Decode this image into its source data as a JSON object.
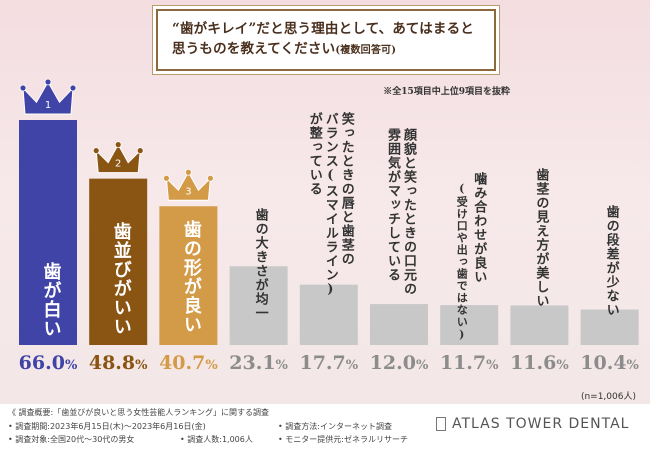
{
  "title": {
    "line1": "“歯がキレイ”だと思う理由として、あてはまると",
    "line2": "思うものを教えてください",
    "line2_sub": "(複数回答可)"
  },
  "note": "※全15項目中上位9項目を抜粋",
  "sample": "(n=1,006人)",
  "chart_data": {
    "type": "bar",
    "ylim": [
      0,
      70
    ],
    "unit": "%",
    "categories": [
      [
        "歯が白い"
      ],
      [
        "歯並びがいい"
      ],
      [
        "歯の形が良い"
      ],
      [
        "歯の大きさが均一"
      ],
      [
        "笑ったときの唇と歯茎の",
        "バランス(スマイルライン)",
        "が整っている"
      ],
      [
        "顔貌と笑ったときの口元の",
        "雰囲気がマッチしている"
      ],
      [
        "噛み合わせが良い",
        "(受け口や出っ歯ではない)"
      ],
      [
        "歯茎の見え方が美しい"
      ],
      [
        "歯の段差が少ない"
      ]
    ],
    "values": [
      66.0,
      48.8,
      40.7,
      23.1,
      17.7,
      12.0,
      11.7,
      11.6,
      10.4
    ],
    "value_labels": [
      "66.0",
      "48.8",
      "40.7",
      "23.1",
      "17.7",
      "12.0",
      "11.7",
      "11.6",
      "10.4"
    ],
    "ranks": [
      "1",
      "2",
      "3"
    ],
    "colors": [
      "#3f44a6",
      "#8a5412",
      "#d39a47",
      "#c8c8c8",
      "#c8c8c8",
      "#c8c8c8",
      "#c8c8c8",
      "#c8c8c8",
      "#c8c8c8"
    ],
    "value_colors": [
      "#3f44a6",
      "#8a5412",
      "#d39a47",
      "#8c8c8c",
      "#8c8c8c",
      "#8c8c8c",
      "#8c8c8c",
      "#8c8c8c",
      "#8c8c8c"
    ]
  },
  "footer": {
    "survey_overview": "《 調査概要:「歯並びが良いと思う女性芸能人ランキング」に関する調査",
    "period": "• 調査期間:2023年6月15日(木)〜2023年6月16日(金)",
    "method": "• 調査方法:インターネット調査",
    "target": "• 調査対象:全国20代〜30代の男女",
    "count": "• 調査人数:1,006人",
    "provider": "• モニター提供元:ゼネラルリサーチ",
    "logo": "ATLAS TOWER DENTAL"
  }
}
